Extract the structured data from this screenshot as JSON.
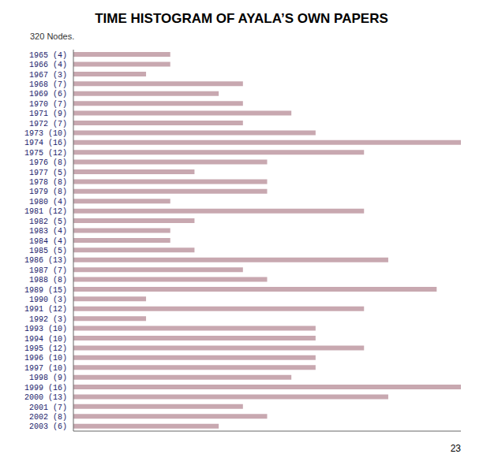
{
  "chart_data": {
    "type": "bar",
    "orientation": "horizontal",
    "title": "TIME HISTOGRAM OF AYALA’S OWN PAPERS",
    "subtitle": "320 Nodes.",
    "annotations": [
      "23"
    ],
    "categories": [
      "1965 (4)",
      "1966 (4)",
      "1967 (3)",
      "1968 (7)",
      "1969 (6)",
      "1970 (7)",
      "1971 (9)",
      "1972 (7)",
      "1973 (10)",
      "1974 (16)",
      "1975 (12)",
      "1976 (8)",
      "1977 (5)",
      "1978 (8)",
      "1979 (8)",
      "1980 (4)",
      "1981 (12)",
      "1982 (5)",
      "1983 (4)",
      "1984 (4)",
      "1985 (5)",
      "1986 (13)",
      "1987 (7)",
      "1988 (8)",
      "1989 (15)",
      "1990 (3)",
      "1991 (12)",
      "1992 (3)",
      "1993 (10)",
      "1994 (10)",
      "1995 (12)",
      "1996 (10)",
      "1997 (10)",
      "1998 (9)",
      "1999 (16)",
      "2000 (13)",
      "2001 (7)",
      "2002 (8)",
      "2003 (6)"
    ],
    "values": [
      4,
      4,
      3,
      7,
      6,
      7,
      9,
      7,
      10,
      16,
      12,
      8,
      5,
      8,
      8,
      4,
      12,
      5,
      4,
      4,
      5,
      13,
      7,
      8,
      15,
      3,
      12,
      3,
      10,
      10,
      12,
      10,
      10,
      9,
      16,
      13,
      7,
      8,
      6
    ],
    "color": "#c8a8b0",
    "xlim": [
      0,
      16
    ],
    "xticks": [],
    "tick_labels": "y",
    "grid": false
  }
}
